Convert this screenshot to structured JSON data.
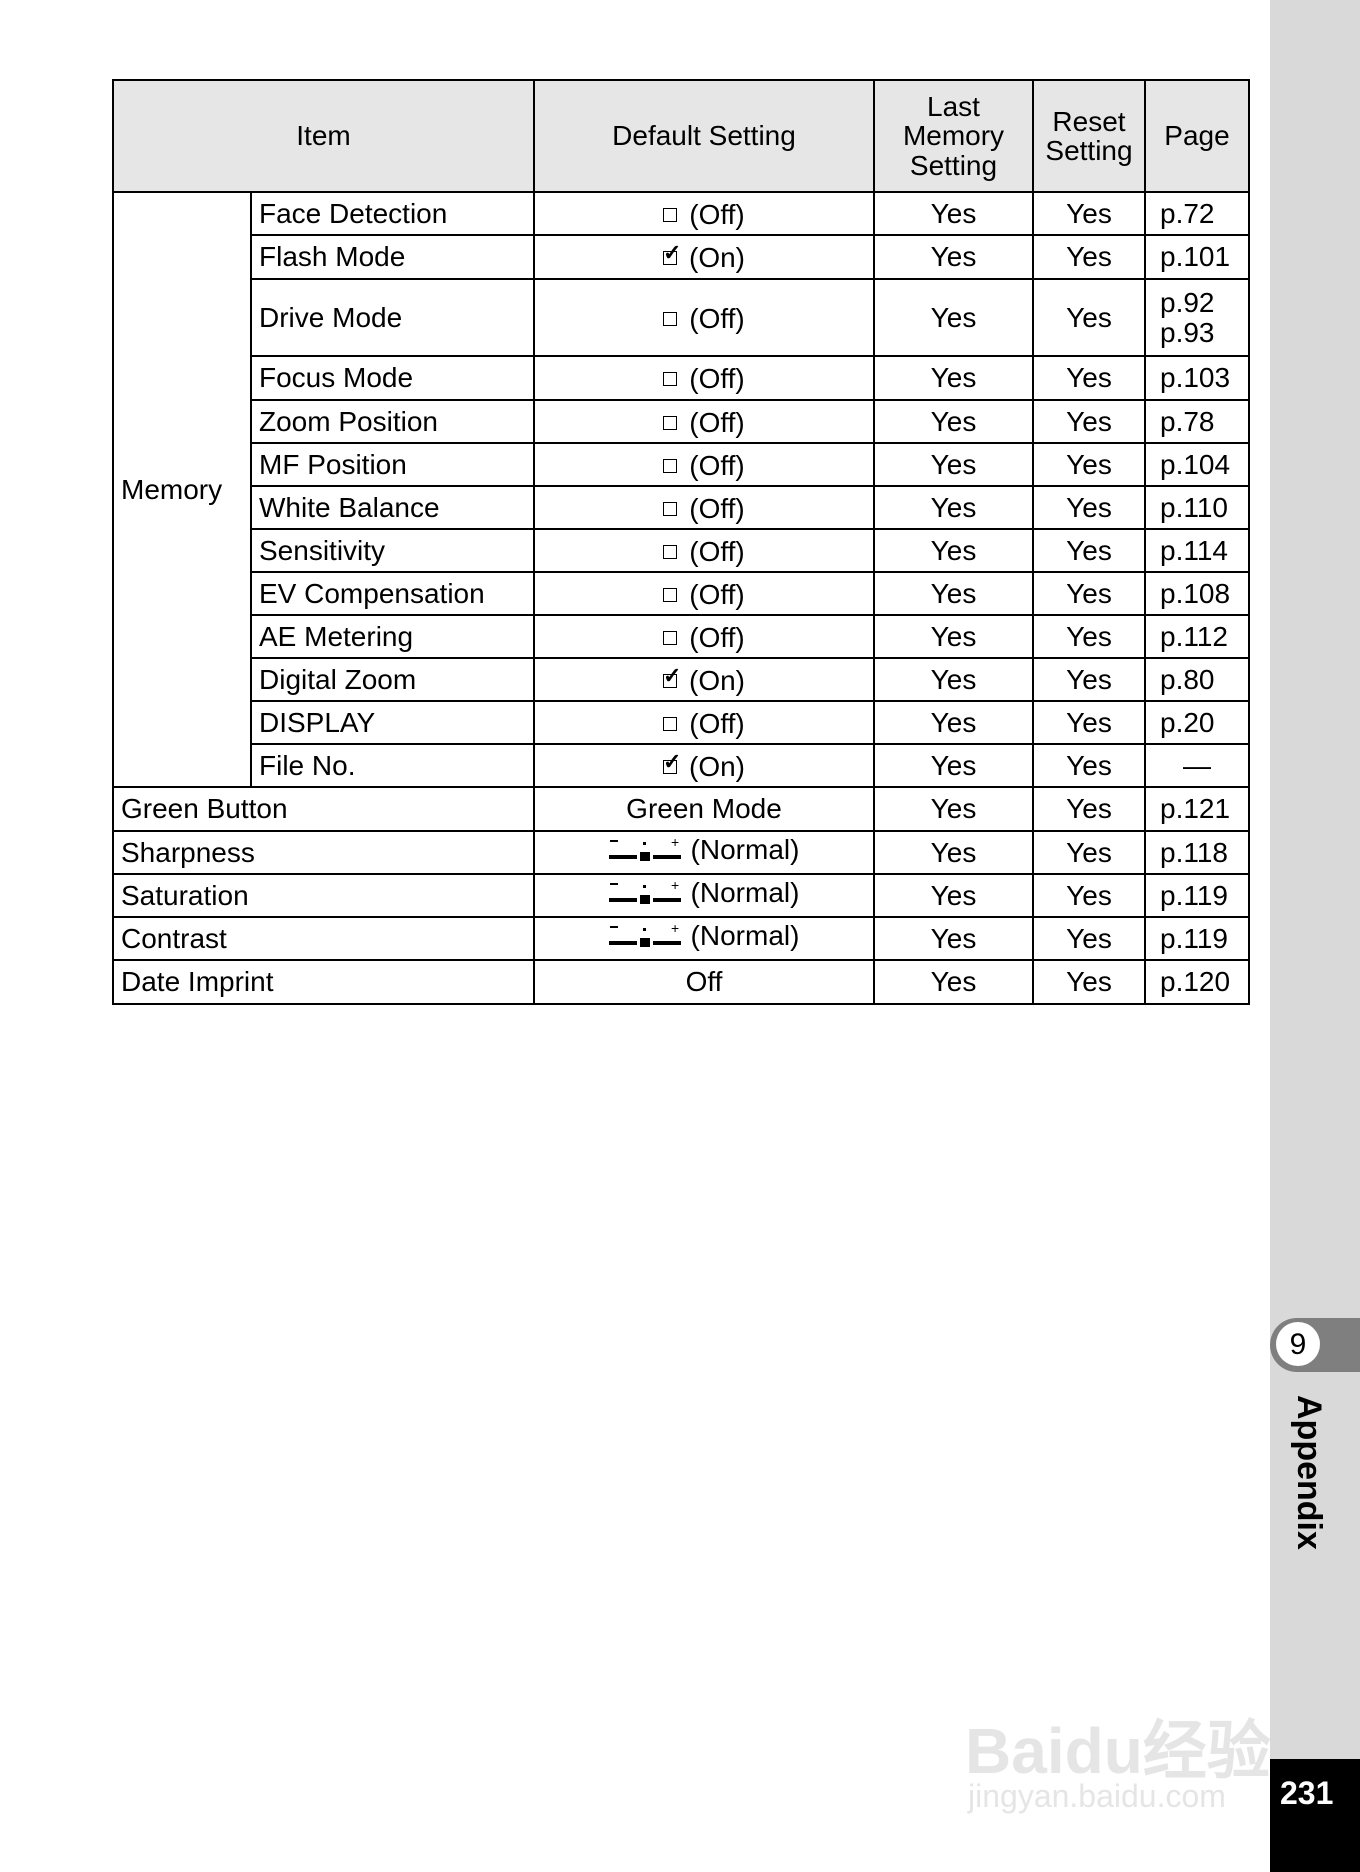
{
  "header": {
    "item": "Item",
    "default": "Default Setting",
    "last_memory": "Last Memory Setting",
    "reset": "Reset Setting",
    "page": "Page"
  },
  "memory_label": "Memory",
  "memory_rows": [
    {
      "item": "Face Detection",
      "check": false,
      "default": "(Off)",
      "last": "Yes",
      "reset": "Yes",
      "page": "p.72"
    },
    {
      "item": "Flash Mode",
      "check": true,
      "default": "(On)",
      "last": "Yes",
      "reset": "Yes",
      "page": "p.101"
    },
    {
      "item": "Drive Mode",
      "check": false,
      "default": "(Off)",
      "last": "Yes",
      "reset": "Yes",
      "page": "p.92\np.93"
    },
    {
      "item": "Focus Mode",
      "check": false,
      "default": "(Off)",
      "last": "Yes",
      "reset": "Yes",
      "page": "p.103"
    },
    {
      "item": "Zoom Position",
      "check": false,
      "default": "(Off)",
      "last": "Yes",
      "reset": "Yes",
      "page": "p.78"
    },
    {
      "item": "MF Position",
      "check": false,
      "default": "(Off)",
      "last": "Yes",
      "reset": "Yes",
      "page": "p.104"
    },
    {
      "item": "White Balance",
      "check": false,
      "default": "(Off)",
      "last": "Yes",
      "reset": "Yes",
      "page": "p.110"
    },
    {
      "item": "Sensitivity",
      "check": false,
      "default": "(Off)",
      "last": "Yes",
      "reset": "Yes",
      "page": "p.114"
    },
    {
      "item": "EV Compensation",
      "check": false,
      "default": "(Off)",
      "last": "Yes",
      "reset": "Yes",
      "page": "p.108"
    },
    {
      "item": "AE Metering",
      "check": false,
      "default": "(Off)",
      "last": "Yes",
      "reset": "Yes",
      "page": "p.112"
    },
    {
      "item": "Digital Zoom",
      "check": true,
      "default": "(On)",
      "last": "Yes",
      "reset": "Yes",
      "page": "p.80"
    },
    {
      "item": "DISPLAY",
      "check": false,
      "default": "(Off)",
      "last": "Yes",
      "reset": "Yes",
      "page": "p.20"
    },
    {
      "item": "File No.",
      "check": true,
      "default": "(On)",
      "last": "Yes",
      "reset": "Yes",
      "page": "—"
    }
  ],
  "other_rows": [
    {
      "item": "Green Button",
      "icon": null,
      "default": "Green Mode",
      "last": "Yes",
      "reset": "Yes",
      "page": "p.121"
    },
    {
      "item": "Sharpness",
      "icon": "slider-normal-icon",
      "default": "(Normal)",
      "last": "Yes",
      "reset": "Yes",
      "page": "p.118"
    },
    {
      "item": "Saturation",
      "icon": "slider-normal-icon",
      "default": "(Normal)",
      "last": "Yes",
      "reset": "Yes",
      "page": "p.119"
    },
    {
      "item": "Contrast",
      "icon": "slider-normal-icon",
      "default": "(Normal)",
      "last": "Yes",
      "reset": "Yes",
      "page": "p.119"
    },
    {
      "item": "Date Imprint",
      "icon": null,
      "default": "Off",
      "last": "Yes",
      "reset": "Yes",
      "page": "p.120"
    }
  ],
  "sidebar": {
    "chapter_number": "9",
    "chapter_title": "Appendix",
    "page_number": "231"
  },
  "watermark": {
    "logo": "Baidu经验",
    "url": "jingyan.baidu.com"
  },
  "colors": {
    "header_bg": "#e6e6e6",
    "sidebar_bg": "#d9d9d9",
    "tab_bg": "#7f7f7f"
  }
}
